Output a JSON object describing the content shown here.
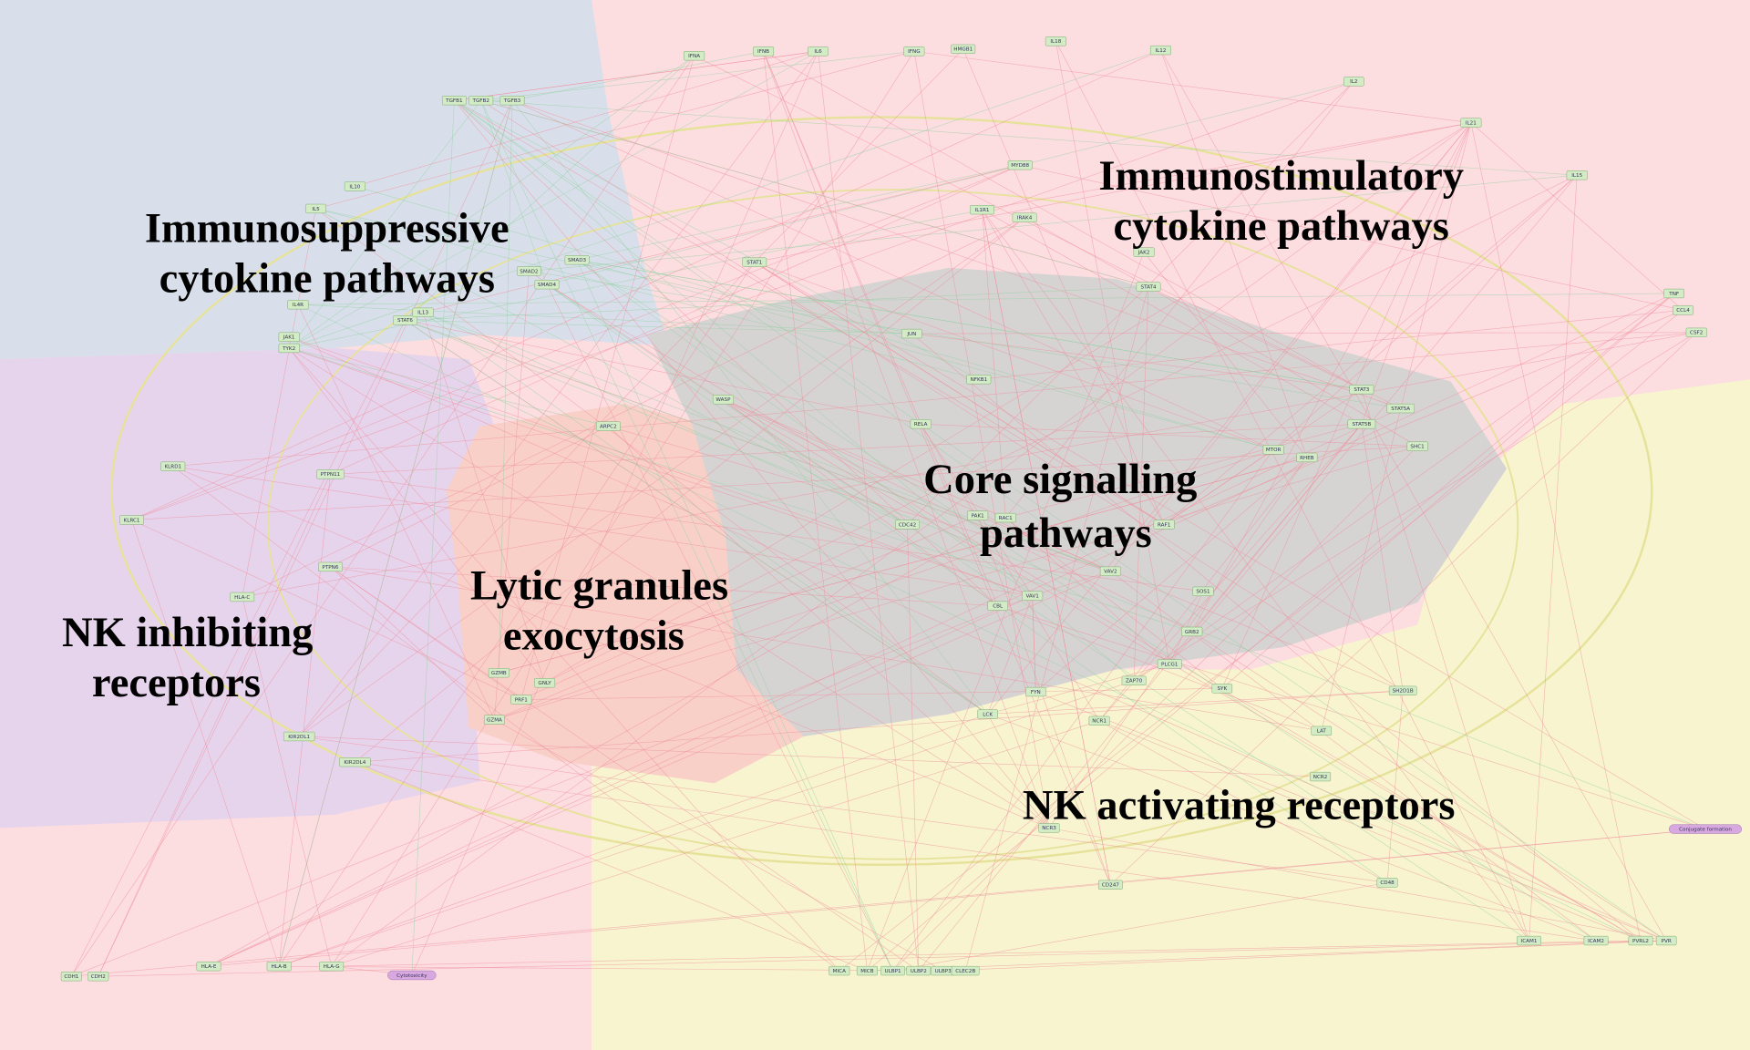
{
  "regions": [
    {
      "lines": [
        "Immunosuppressive",
        "cytokine pathways"
      ]
    },
    {
      "lines": [
        "Immunostimulatory",
        "cytokine pathways"
      ]
    },
    {
      "lines": [
        "Core signalling",
        "pathways"
      ]
    },
    {
      "lines": [
        "Lytic granules",
        "exocytosis"
      ]
    },
    {
      "lines": [
        "NK inhibiting",
        "receptors"
      ]
    },
    {
      "lines": [
        "NK activating receptors"
      ]
    }
  ],
  "nodes": [
    {
      "label": "TGFB1"
    },
    {
      "label": "TGFB2"
    },
    {
      "label": "TGFB3"
    },
    {
      "label": "IL10"
    },
    {
      "label": "IL5"
    },
    {
      "label": "IL4R"
    },
    {
      "label": "JAK1"
    },
    {
      "label": "TYK2"
    },
    {
      "label": "STAT6"
    },
    {
      "label": "IL13"
    },
    {
      "label": "SMAD2"
    },
    {
      "label": "SMAD3"
    },
    {
      "label": "SMAD4"
    },
    {
      "label": "IFNA"
    },
    {
      "label": "IFNB"
    },
    {
      "label": "IL6"
    },
    {
      "label": "IFNG"
    },
    {
      "label": "HMGB1"
    },
    {
      "label": "IL18"
    },
    {
      "label": "IL12"
    },
    {
      "label": "IL2"
    },
    {
      "label": "IL21"
    },
    {
      "label": "IL15"
    },
    {
      "label": "TNF"
    },
    {
      "label": "CCL4"
    },
    {
      "label": "CSF2"
    },
    {
      "label": "JAK2"
    },
    {
      "label": "STAT1"
    },
    {
      "label": "STAT4"
    },
    {
      "label": "STAT3"
    },
    {
      "label": "STAT5A"
    },
    {
      "label": "STAT5B"
    },
    {
      "label": "JUN"
    },
    {
      "label": "NFKB1"
    },
    {
      "label": "RELA"
    },
    {
      "label": "MTOR"
    },
    {
      "label": "RHEB"
    },
    {
      "label": "CDC42"
    },
    {
      "label": "RAC1"
    },
    {
      "label": "PAK1"
    },
    {
      "label": "VAV1"
    },
    {
      "label": "VAV2"
    },
    {
      "label": "CBL"
    },
    {
      "label": "SYK"
    },
    {
      "label": "ZAP70"
    },
    {
      "label": "LCK"
    },
    {
      "label": "FYN"
    },
    {
      "label": "LAT"
    },
    {
      "label": "PLCG1"
    },
    {
      "label": "HLA-C"
    },
    {
      "label": "HLA-E"
    },
    {
      "label": "HLA-B"
    },
    {
      "label": "KLRC1"
    },
    {
      "label": "KLRD1"
    },
    {
      "label": "PRF1"
    },
    {
      "label": "GZMB"
    },
    {
      "label": "GZMA"
    },
    {
      "label": "GNLY"
    },
    {
      "label": "NCR1"
    },
    {
      "label": "NCR2"
    },
    {
      "label": "NCR3"
    },
    {
      "label": "CD247"
    },
    {
      "label": "KIR2DL1"
    },
    {
      "label": "KIR2DL4"
    },
    {
      "label": "SH2D1B"
    },
    {
      "label": "CD48"
    },
    {
      "label": "ICAM1"
    },
    {
      "label": "ICAM2"
    },
    {
      "label": "PVRL2"
    },
    {
      "label": "PVR"
    },
    {
      "label": "MICA"
    },
    {
      "label": "MICB"
    },
    {
      "label": "ULBP1"
    },
    {
      "label": "ULBP2"
    },
    {
      "label": "ULBP3"
    },
    {
      "label": "CLEC2B"
    },
    {
      "label": "HLA-G"
    },
    {
      "label": "CDH1"
    },
    {
      "label": "CDH2"
    },
    {
      "label": "WASP"
    },
    {
      "label": "ARPC2"
    },
    {
      "label": "IL1R1"
    },
    {
      "label": "MYD88"
    },
    {
      "label": "IRAK4"
    },
    {
      "label": "SHC1"
    },
    {
      "label": "GRB2"
    },
    {
      "label": "SOS1"
    },
    {
      "label": "RAF1"
    },
    {
      "label": "PTPN6"
    },
    {
      "label": "PTPN11"
    },
    {
      "label": "Cytotoxicity",
      "kind": "process"
    },
    {
      "label": "Conjugate formation",
      "kind": "process"
    }
  ]
}
